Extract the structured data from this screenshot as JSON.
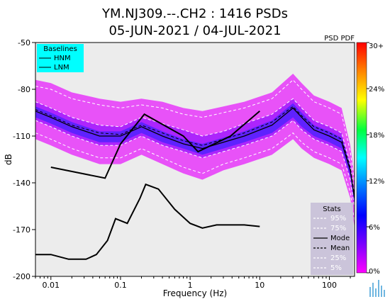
{
  "chart_data": {
    "type": "line",
    "title_line1": "YM.NJ309.--.CH2 : 1416 PSDs",
    "title_line2": "05-JUN-2021 / 04-JUL-2021",
    "xlabel": "Frequency (Hz)",
    "ylabel": "dB",
    "x_scale": "log",
    "xlim": [
      0.006,
      230
    ],
    "ylim": [
      -200,
      -50
    ],
    "x_ticks": [
      0.01,
      0.1,
      1,
      10,
      100
    ],
    "x_tick_labels": [
      "0.01",
      "0.1",
      "1",
      "10",
      "100"
    ],
    "y_ticks": [
      -50,
      -80,
      -110,
      -140,
      -170,
      -200
    ],
    "y_tick_labels": [
      "-50",
      "-80",
      "-110",
      "-140",
      "-170",
      "-200"
    ],
    "grid": false,
    "baselines_legend": {
      "title": "Baselines",
      "items": [
        "HNM",
        "LNM"
      ],
      "placement": "top-left"
    },
    "stats_legend": {
      "title": "Stats",
      "items": [
        {
          "label": "95%",
          "style": "dashed",
          "color": "#ffffff"
        },
        {
          "label": "75%",
          "style": "dashed",
          "color": "#ffffff"
        },
        {
          "label": "Mode",
          "style": "solid",
          "color": "#000000"
        },
        {
          "label": "Mean",
          "style": "dashed",
          "color": "#000000"
        },
        {
          "label": "25%",
          "style": "dashed",
          "color": "#ffffff"
        },
        {
          "label": "5%",
          "style": "dashed",
          "color": "#ffffff"
        }
      ],
      "placement": "bottom-right"
    },
    "colorbar": {
      "title": "PSD PDF",
      "tick_labels": [
        "30+",
        "24%",
        "18%",
        "12%",
        "6%",
        "0%"
      ],
      "colors": [
        "#ff0000",
        "#ff8000",
        "#ffff00",
        "#00ff40",
        "#00ffff",
        "#0040ff",
        "#0000ff",
        "#8000ff",
        "#ff00ff"
      ]
    },
    "series": [
      {
        "name": "HNM",
        "x": [
          0.01,
          0.06,
          0.1,
          0.22,
          0.8,
          1.3,
          3.8,
          10
        ],
        "y": [
          -130,
          -137,
          -115,
          -96,
          -110,
          -120,
          -110,
          -94
        ]
      },
      {
        "name": "LNM",
        "x": [
          0.006,
          0.01,
          0.018,
          0.032,
          0.045,
          0.065,
          0.085,
          0.125,
          0.19,
          0.23,
          0.35,
          0.6,
          1.0,
          1.5,
          2.4,
          4,
          6,
          10
        ],
        "y": [
          -186,
          -186,
          -189,
          -189,
          -186,
          -177,
          -163,
          -166,
          -150,
          -141,
          -144,
          -157,
          -166,
          -169,
          -167,
          -167,
          -167,
          -168
        ]
      },
      {
        "name": "95%",
        "x": [
          0.006,
          0.01,
          0.02,
          0.05,
          0.1,
          0.2,
          0.4,
          0.8,
          1.5,
          3,
          6,
          15,
          30,
          40,
          60,
          100,
          150,
          200,
          230
        ],
        "y": [
          -78,
          -80,
          -86,
          -90,
          -92,
          -90,
          -92,
          -96,
          -98,
          -95,
          -92,
          -86,
          -74,
          -80,
          -88,
          -92,
          -96,
          -120,
          -140
        ]
      },
      {
        "name": "75%",
        "x": [
          0.006,
          0.01,
          0.02,
          0.05,
          0.1,
          0.2,
          0.4,
          0.8,
          1.5,
          3,
          6,
          15,
          30,
          40,
          60,
          100,
          150,
          200,
          230
        ],
        "y": [
          -88,
          -92,
          -98,
          -103,
          -104,
          -98,
          -102,
          -106,
          -110,
          -107,
          -102,
          -96,
          -86,
          -92,
          -100,
          -104,
          -108,
          -128,
          -148
        ]
      },
      {
        "name": "Mode",
        "x": [
          0.006,
          0.01,
          0.02,
          0.05,
          0.1,
          0.2,
          0.4,
          0.8,
          1.5,
          3,
          6,
          15,
          30,
          40,
          60,
          100,
          150,
          200,
          230
        ],
        "y": [
          -94,
          -98,
          -104,
          -110,
          -110,
          -104,
          -110,
          -115,
          -118,
          -114,
          -110,
          -103,
          -92,
          -98,
          -106,
          -110,
          -114,
          -132,
          -150
        ]
      },
      {
        "name": "Mean",
        "x": [
          0.006,
          0.01,
          0.02,
          0.05,
          0.1,
          0.2,
          0.4,
          0.8,
          1.5,
          3,
          6,
          15,
          30,
          40,
          60,
          100,
          150,
          200,
          230
        ],
        "y": [
          -93,
          -97,
          -103,
          -108,
          -109,
          -103,
          -108,
          -113,
          -116,
          -112,
          -108,
          -101,
          -91,
          -97,
          -104,
          -108,
          -112,
          -130,
          -148
        ]
      },
      {
        "name": "25%",
        "x": [
          0.006,
          0.01,
          0.02,
          0.05,
          0.1,
          0.2,
          0.4,
          0.8,
          1.5,
          3,
          6,
          15,
          30,
          40,
          60,
          100,
          150,
          200,
          230
        ],
        "y": [
          -100,
          -104,
          -110,
          -116,
          -116,
          -110,
          -116,
          -120,
          -124,
          -120,
          -116,
          -110,
          -100,
          -106,
          -112,
          -116,
          -120,
          -138,
          -156
        ]
      },
      {
        "name": "5%",
        "x": [
          0.006,
          0.01,
          0.02,
          0.05,
          0.1,
          0.2,
          0.4,
          0.8,
          1.5,
          3,
          6,
          15,
          30,
          40,
          60,
          100,
          150,
          200,
          230
        ],
        "y": [
          -108,
          -112,
          -118,
          -124,
          -124,
          -118,
          -124,
          -130,
          -134,
          -128,
          -124,
          -118,
          -108,
          -114,
          -120,
          -124,
          -128,
          -146,
          -165
        ]
      }
    ]
  }
}
